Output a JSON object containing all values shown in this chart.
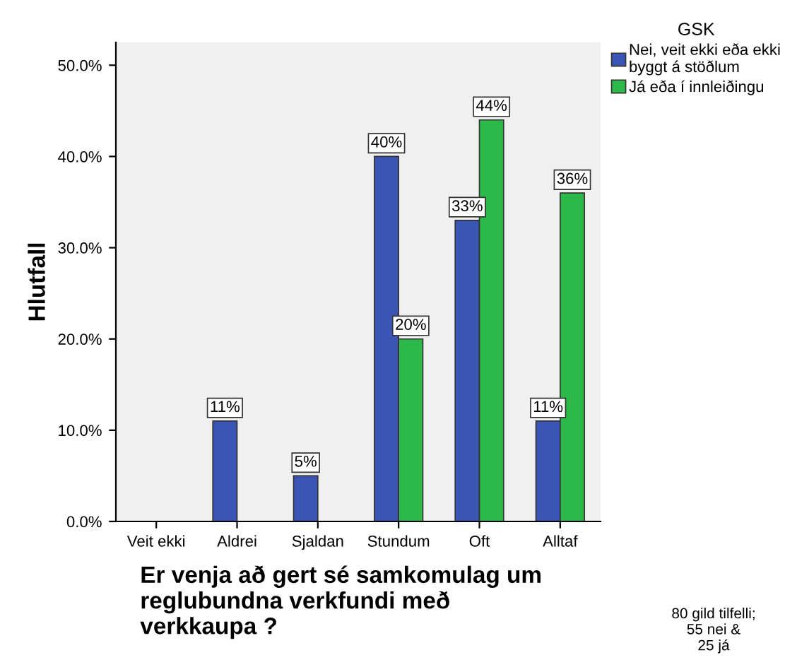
{
  "chart_data": {
    "type": "bar",
    "categories": [
      "Veit ekki",
      "Aldrei",
      "Sjaldan",
      "Stundum",
      "Oft",
      "Alltaf"
    ],
    "series": [
      {
        "name": "Nei, veit ekki eða ekki\nbyggt á stöðlum",
        "color": "#3b55b5",
        "values": [
          null,
          11,
          5,
          40,
          33,
          11
        ],
        "value_labels": [
          null,
          "11%",
          "5%",
          "40%",
          "33%",
          "11%"
        ]
      },
      {
        "name": "Já eða í innleiðingu",
        "color": "#2db84a",
        "values": [
          null,
          null,
          null,
          20,
          44,
          36
        ],
        "value_labels": [
          null,
          null,
          null,
          "20%",
          "44%",
          "36%"
        ]
      }
    ],
    "ylabel": "Hlutfall",
    "xlabel": "Er venja að gert sé samkomulag um\nreglubundna verkfundi með\nverkkaupa ?",
    "legend_title": "GSK",
    "legend": "top right",
    "ylim": [
      0,
      52.5
    ],
    "yticks": [
      {
        "value": 0,
        "label": "0.0%"
      },
      {
        "value": 10,
        "label": "10.0%"
      },
      {
        "value": 20,
        "label": "20.0%"
      },
      {
        "value": 30,
        "label": "30.0%"
      },
      {
        "value": 40,
        "label": "40.0%"
      },
      {
        "value": 50,
        "label": "50.0%"
      }
    ],
    "grid": false,
    "annotations": [
      "80 gild tilfelli;\n55 nei &\n25 já"
    ]
  }
}
